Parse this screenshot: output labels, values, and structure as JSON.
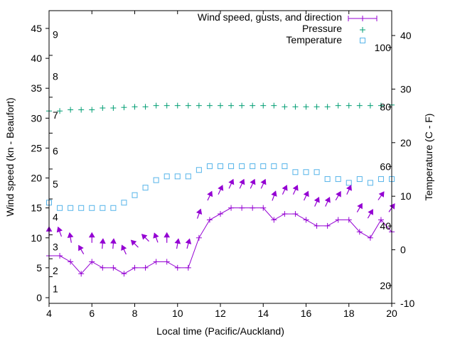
{
  "chart_data": {
    "type": "line",
    "title": "",
    "xlabel": "Local time (Pacific/Auckland)",
    "ylabel": "Wind speed (kn - Beaufort)",
    "y2label": "Temperature (C - F)",
    "xlim": [
      4,
      20
    ],
    "ylim": [
      -1,
      48
    ],
    "y2lim": [
      -10,
      45
    ],
    "x_ticks": [
      "4",
      "6",
      "8",
      "10",
      "12",
      "14",
      "16",
      "18",
      "20"
    ],
    "y_ticks": [
      "0",
      "5",
      "10",
      "15",
      "20",
      "25",
      "30",
      "35",
      "40",
      "45"
    ],
    "y2_ticks": [
      "-10",
      "0",
      "10",
      "20",
      "30",
      "40"
    ],
    "beaufort_labels": [
      "1",
      "2",
      "3",
      "4",
      "5",
      "6",
      "7",
      "8",
      "9"
    ],
    "beaufort_values_kn": [
      1.5,
      4.5,
      8.5,
      13.5,
      19,
      24.5,
      30.5,
      37,
      44
    ],
    "fahrenheit_labels": [
      "20",
      "40",
      "60",
      "80",
      "100"
    ],
    "fahrenheit_values": [
      20,
      40,
      60,
      80,
      100
    ],
    "grid": false,
    "legend_position": "top-right",
    "legend": [
      {
        "label": "Wind speed, gusts, and direction",
        "marker": "line-plus"
      },
      {
        "label": "Pressure",
        "marker": "plus"
      },
      {
        "label": "Temperature",
        "marker": "square"
      }
    ],
    "colors": {
      "wind": "#9400d3",
      "pressure": "#009e73",
      "temperature": "#56b4e9",
      "axis": "#000000"
    },
    "x": [
      4,
      4.5,
      5,
      5.5,
      6,
      6.5,
      7,
      7.5,
      8,
      8.5,
      9,
      9.5,
      10,
      10.5,
      11,
      11.5,
      12,
      12.5,
      13,
      13.5,
      14,
      14.5,
      15,
      15.5,
      16,
      16.5,
      17,
      17.5,
      18,
      18.5,
      19,
      19.5,
      20
    ],
    "series": [
      {
        "name": "Wind speed",
        "axis": "left",
        "values": [
          7,
          7,
          6,
          4,
          6,
          5,
          5,
          4,
          5,
          5,
          6,
          6,
          5,
          5,
          10,
          13,
          14,
          15,
          15,
          15,
          15,
          13,
          14,
          14,
          13,
          12,
          12,
          13,
          13,
          11,
          10,
          13,
          11
        ]
      },
      {
        "name": "Gusts",
        "axis": "left",
        "values": [
          11,
          11,
          10,
          8,
          10,
          9,
          9,
          8,
          9,
          10,
          10,
          10,
          9,
          9,
          14,
          17,
          18,
          19,
          19,
          19,
          19,
          17,
          18,
          18,
          17,
          16,
          16,
          17,
          18,
          15,
          14,
          17,
          15
        ]
      },
      {
        "name": "Wind direction (deg, arrow heading)",
        "axis": "none",
        "values": [
          0,
          -20,
          -10,
          -30,
          0,
          5,
          5,
          -25,
          -45,
          -45,
          -20,
          0,
          10,
          15,
          20,
          25,
          25,
          25,
          25,
          25,
          25,
          20,
          25,
          25,
          25,
          25,
          25,
          30,
          25,
          30,
          30,
          35,
          35
        ]
      },
      {
        "name": "Pressure",
        "axis": "left",
        "values": [
          31.2,
          31.2,
          31.4,
          31.4,
          31.4,
          31.7,
          31.7,
          31.8,
          31.9,
          31.9,
          32.1,
          32.1,
          32.1,
          32.1,
          32.1,
          32.1,
          32.1,
          32.1,
          32.1,
          32.1,
          32.1,
          32.1,
          31.9,
          31.9,
          31.9,
          31.9,
          31.9,
          32.1,
          32.1,
          32.1,
          32.1,
          32.1,
          32.2
        ]
      },
      {
        "name": "Temperature",
        "axis": "right",
        "values": [
          8.8,
          7.8,
          7.8,
          7.8,
          7.8,
          7.8,
          7.8,
          8.8,
          10.2,
          11.6,
          13.0,
          13.7,
          13.7,
          13.7,
          14.9,
          15.6,
          15.6,
          15.6,
          15.6,
          15.6,
          15.6,
          15.6,
          15.6,
          14.5,
          14.5,
          14.5,
          13.2,
          13.2,
          12.5,
          13.2,
          12.5,
          13.2,
          13.2
        ]
      }
    ]
  }
}
